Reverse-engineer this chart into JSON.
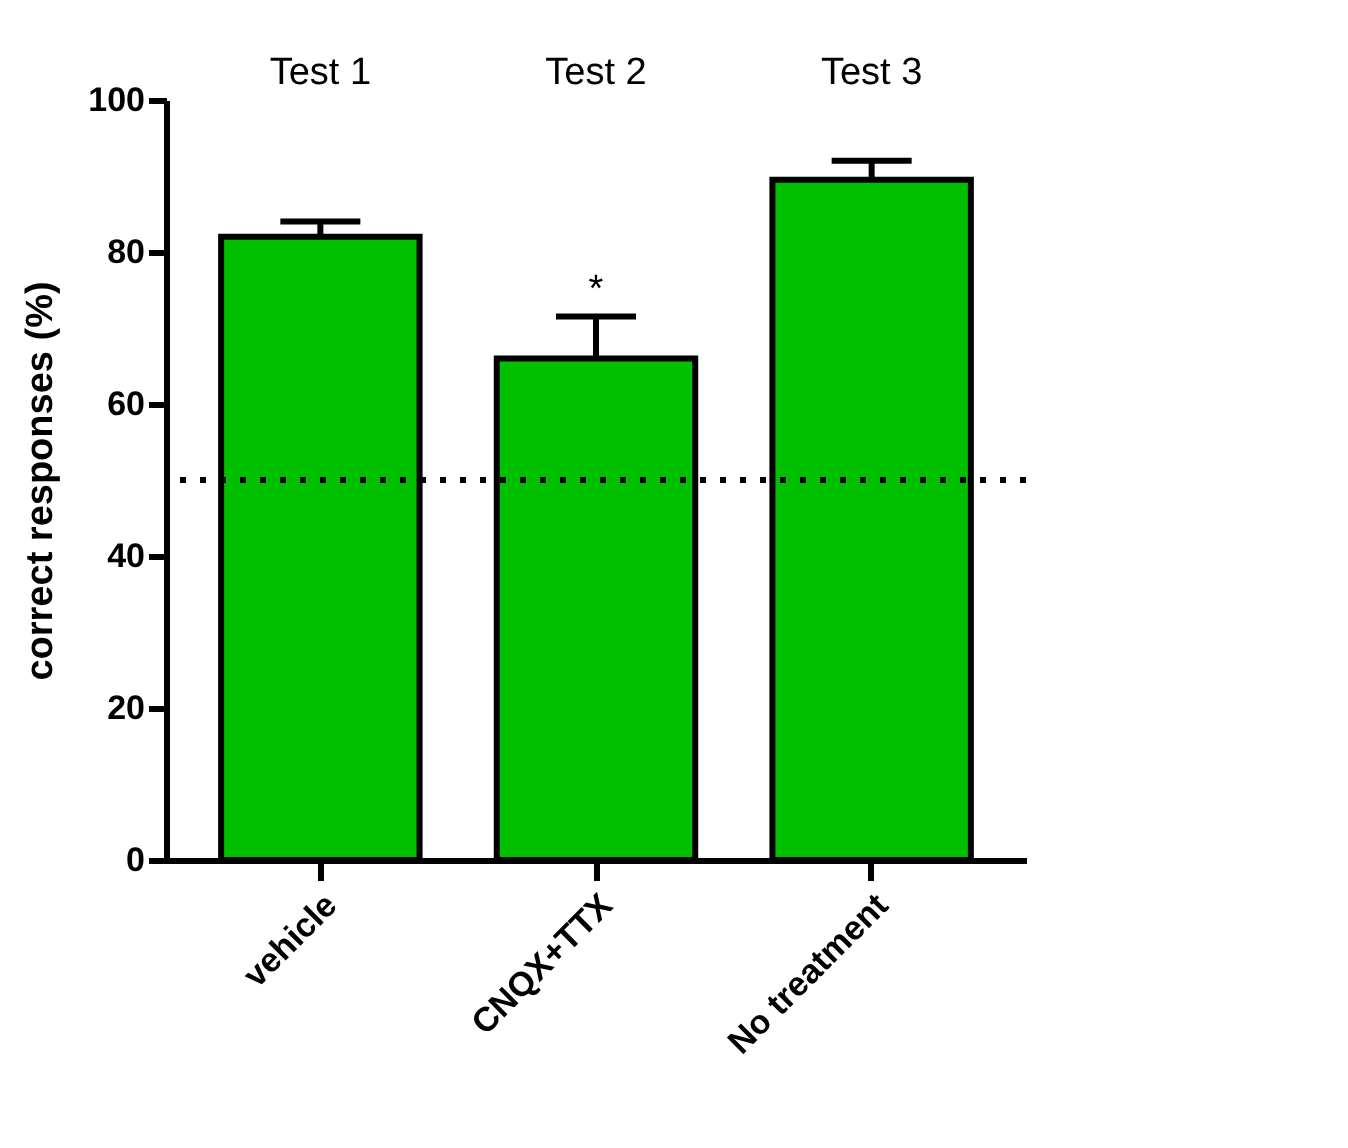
{
  "chart_data": {
    "type": "bar",
    "ylabel": "correct responses (%)",
    "categories": [
      "vehicle",
      "CNQX+TTX",
      "No treatment"
    ],
    "values": [
      82,
      66,
      89.5
    ],
    "errors": [
      [
        82,
        84
      ],
      [
        66,
        71.5
      ],
      [
        89.5,
        92
      ]
    ],
    "color": "#00c000",
    "ylim": [
      0,
      100
    ],
    "yticks": [
      0,
      20,
      40,
      60,
      80,
      100
    ],
    "grid": false,
    "ref_lines": [
      {
        "axis": "y",
        "value": 50,
        "line_style": "dotted",
        "color": "#000000"
      }
    ],
    "annotations": [
      "Test 1",
      "Test 2",
      "Test 3",
      {
        "text": "*",
        "x": "CNQX+TTX",
        "y": 71.5
      }
    ]
  }
}
